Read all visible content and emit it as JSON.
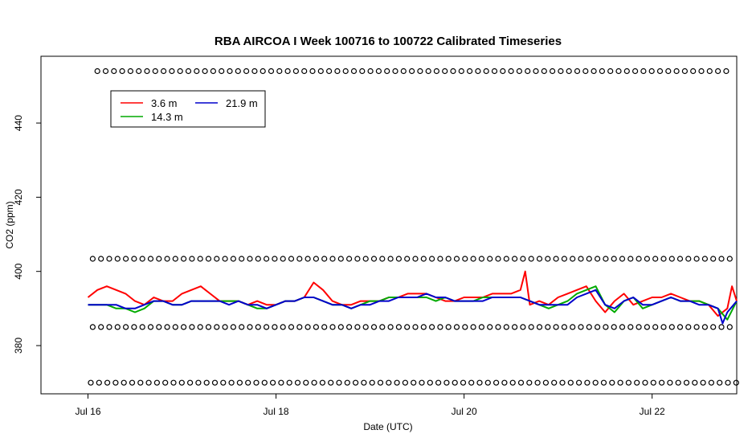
{
  "chart_data": {
    "type": "line",
    "title": "RBA AIRCOA I  Week 100716 to 100722  Calibrated Timeseries",
    "xlabel": "Date (UTC)",
    "ylabel": "CO2 (ppm)",
    "xlim": [
      -0.5,
      6.9
    ],
    "ylim": [
      367,
      458
    ],
    "x_ticks": [
      0,
      2,
      4,
      6
    ],
    "x_tick_labels": [
      "Jul 16",
      "Jul 18",
      "Jul 20",
      "Jul 22"
    ],
    "y_ticks": [
      380,
      400,
      420,
      440
    ],
    "y_tick_labels": [
      "380",
      "400",
      "420",
      "440"
    ],
    "x_units": "days since Jul 16 00:00 UTC",
    "legend": {
      "position": "top-left",
      "entries": [
        {
          "name": "3.6 m",
          "color": "#ff0000"
        },
        {
          "name": "14.3 m",
          "color": "#00aa00"
        },
        {
          "name": "21.9 m",
          "color": "#0000cc"
        }
      ]
    },
    "series": [
      {
        "name": "3.6 m",
        "color": "#ff0000",
        "x": [
          0.0,
          0.1,
          0.2,
          0.3,
          0.4,
          0.5,
          0.6,
          0.7,
          0.8,
          0.9,
          1.0,
          1.1,
          1.2,
          1.3,
          1.4,
          1.5,
          1.6,
          1.7,
          1.8,
          1.9,
          2.0,
          2.1,
          2.2,
          2.3,
          2.4,
          2.5,
          2.6,
          2.7,
          2.8,
          2.9,
          3.0,
          3.1,
          3.2,
          3.3,
          3.4,
          3.5,
          3.6,
          3.7,
          3.8,
          3.9,
          4.0,
          4.1,
          4.2,
          4.3,
          4.4,
          4.5,
          4.6,
          4.65,
          4.7,
          4.8,
          4.9,
          5.0,
          5.1,
          5.2,
          5.3,
          5.4,
          5.5,
          5.6,
          5.7,
          5.8,
          5.9,
          6.0,
          6.1,
          6.2,
          6.3,
          6.4,
          6.5,
          6.6,
          6.7,
          6.8,
          6.85,
          6.9
        ],
        "y": [
          393,
          395,
          396,
          395,
          394,
          392,
          391,
          393,
          392,
          392,
          394,
          395,
          396,
          394,
          392,
          392,
          392,
          391,
          392,
          391,
          391,
          392,
          392,
          393,
          397,
          395,
          392,
          391,
          391,
          392,
          392,
          392,
          393,
          393,
          394,
          394,
          394,
          393,
          392,
          392,
          393,
          393,
          393,
          394,
          394,
          394,
          395,
          400,
          391,
          392,
          391,
          393,
          394,
          395,
          396,
          392,
          389,
          392,
          394,
          391,
          392,
          393,
          393,
          394,
          393,
          392,
          392,
          391,
          388,
          390,
          396,
          392
        ]
      },
      {
        "name": "14.3 m",
        "color": "#00aa00",
        "x": [
          0.0,
          0.1,
          0.2,
          0.3,
          0.4,
          0.5,
          0.6,
          0.7,
          0.8,
          0.9,
          1.0,
          1.1,
          1.2,
          1.3,
          1.4,
          1.5,
          1.6,
          1.7,
          1.8,
          1.9,
          2.0,
          2.1,
          2.2,
          2.3,
          2.4,
          2.5,
          2.6,
          2.7,
          2.8,
          2.9,
          3.0,
          3.1,
          3.2,
          3.3,
          3.4,
          3.5,
          3.6,
          3.7,
          3.8,
          3.9,
          4.0,
          4.1,
          4.2,
          4.3,
          4.4,
          4.5,
          4.6,
          4.7,
          4.8,
          4.9,
          5.0,
          5.1,
          5.2,
          5.3,
          5.4,
          5.5,
          5.6,
          5.7,
          5.8,
          5.9,
          6.0,
          6.1,
          6.2,
          6.3,
          6.4,
          6.5,
          6.6,
          6.7,
          6.8,
          6.9
        ],
        "y": [
          391,
          391,
          391,
          390,
          390,
          389,
          390,
          392,
          392,
          391,
          391,
          392,
          392,
          392,
          392,
          392,
          392,
          391,
          390,
          390,
          391,
          392,
          392,
          393,
          393,
          392,
          391,
          391,
          390,
          391,
          392,
          392,
          393,
          393,
          393,
          393,
          393,
          392,
          393,
          392,
          392,
          392,
          393,
          393,
          393,
          393,
          393,
          392,
          391,
          390,
          391,
          392,
          394,
          395,
          396,
          391,
          389,
          392,
          393,
          390,
          391,
          392,
          393,
          392,
          392,
          392,
          391,
          390,
          387,
          392
        ]
      },
      {
        "name": "21.9 m",
        "color": "#0000cc",
        "x": [
          0.0,
          0.1,
          0.2,
          0.3,
          0.4,
          0.5,
          0.6,
          0.7,
          0.8,
          0.9,
          1.0,
          1.1,
          1.2,
          1.3,
          1.4,
          1.5,
          1.6,
          1.7,
          1.8,
          1.9,
          2.0,
          2.1,
          2.2,
          2.3,
          2.4,
          2.5,
          2.6,
          2.7,
          2.8,
          2.9,
          3.0,
          3.1,
          3.2,
          3.3,
          3.4,
          3.5,
          3.6,
          3.7,
          3.8,
          3.9,
          4.0,
          4.1,
          4.2,
          4.3,
          4.4,
          4.5,
          4.6,
          4.7,
          4.8,
          4.9,
          5.0,
          5.1,
          5.2,
          5.3,
          5.4,
          5.5,
          5.6,
          5.7,
          5.8,
          5.9,
          6.0,
          6.1,
          6.2,
          6.3,
          6.4,
          6.5,
          6.6,
          6.7,
          6.75,
          6.8,
          6.9
        ],
        "y": [
          391,
          391,
          391,
          391,
          390,
          390,
          391,
          392,
          392,
          391,
          391,
          392,
          392,
          392,
          392,
          391,
          392,
          391,
          391,
          390,
          391,
          392,
          392,
          393,
          393,
          392,
          391,
          391,
          390,
          391,
          391,
          392,
          392,
          393,
          393,
          393,
          394,
          393,
          393,
          392,
          392,
          392,
          392,
          393,
          393,
          393,
          393,
          392,
          391,
          391,
          391,
          391,
          393,
          394,
          395,
          391,
          390,
          392,
          393,
          391,
          391,
          392,
          393,
          392,
          392,
          391,
          391,
          390,
          386,
          389,
          392
        ]
      }
    ],
    "flag_rows": [
      {
        "y": 454,
        "start": 0.1,
        "end": 6.85,
        "step": 0.088
      },
      {
        "y": 403.4,
        "start": 0.05,
        "end": 6.85,
        "step": 0.088
      },
      {
        "y": 385,
        "start": 0.05,
        "end": 6.85,
        "step": 0.088
      },
      {
        "y": 370,
        "start": 0.03,
        "end": 6.9,
        "step": 0.088
      }
    ],
    "flag_marker": "o"
  }
}
